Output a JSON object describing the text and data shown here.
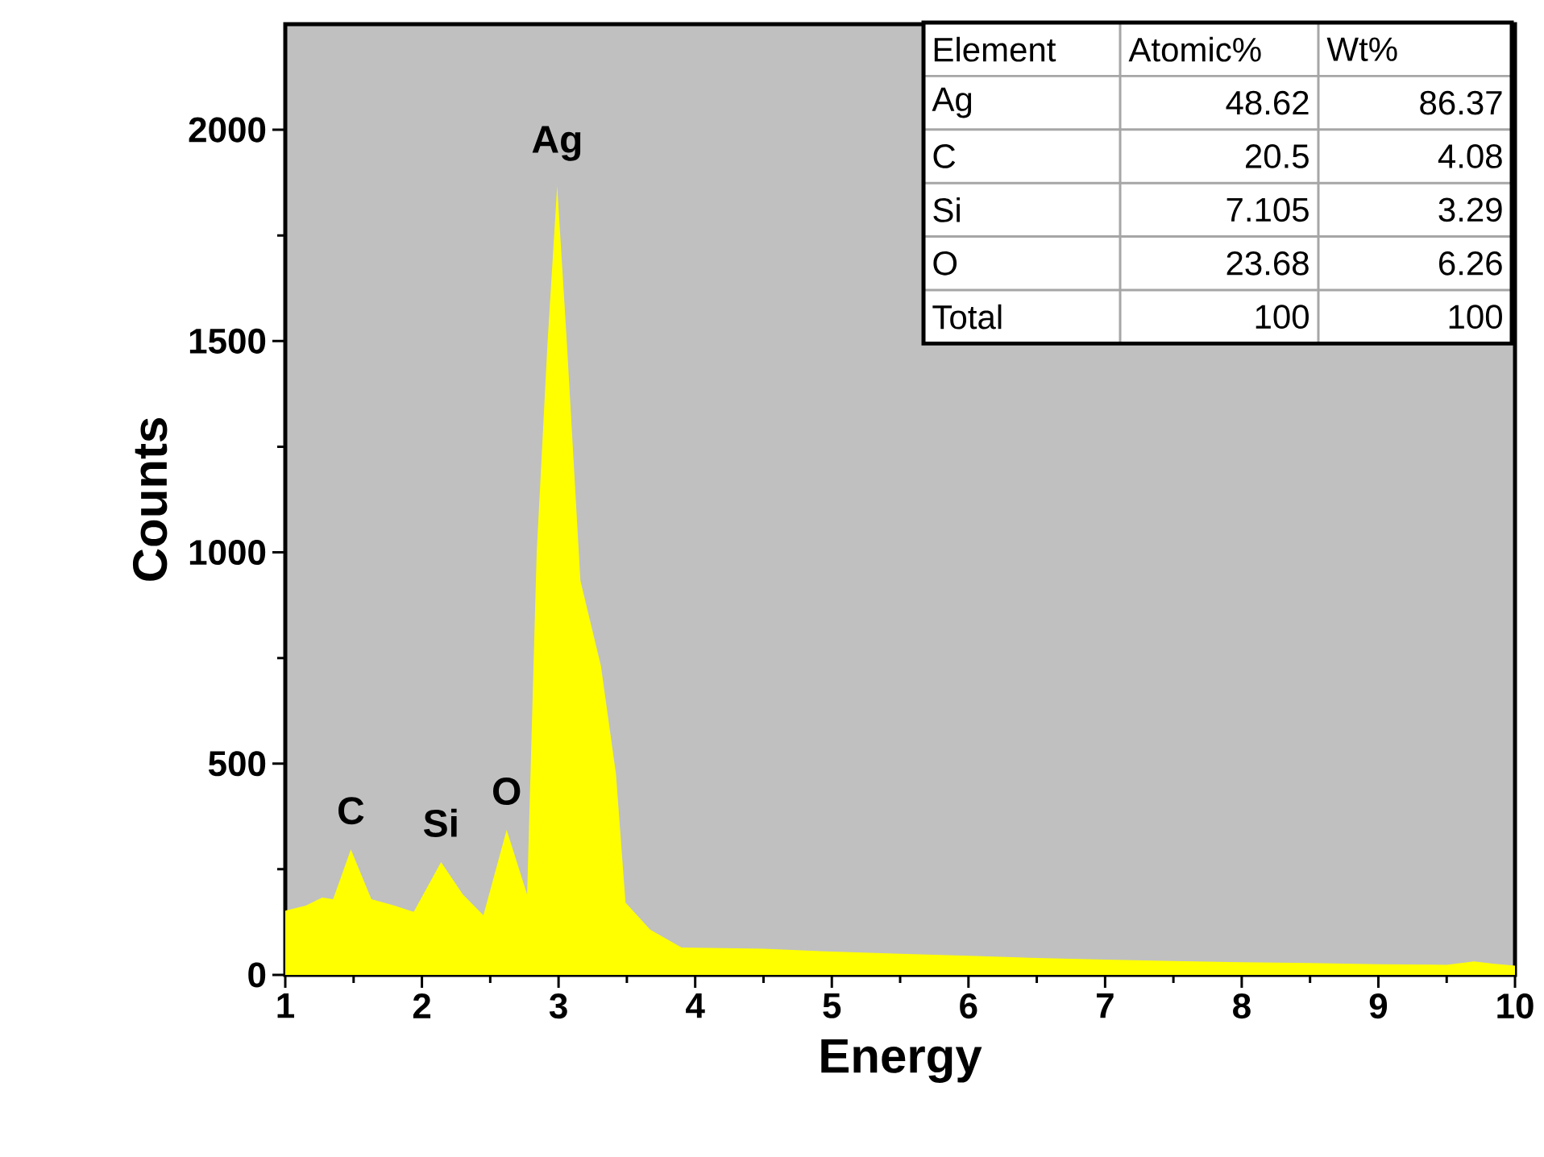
{
  "chart_data": {
    "type": "area",
    "xlabel": "Energy",
    "ylabel": "Counts",
    "color": "#ffff00",
    "x": [
      1.0,
      1.15,
      1.27,
      1.35,
      1.48,
      1.63,
      1.8,
      1.94,
      2.14,
      2.3,
      2.45,
      2.62,
      2.77,
      2.84,
      2.92,
      2.99,
      3.06,
      3.16,
      3.31,
      3.42,
      3.49,
      3.67,
      3.9,
      4.5,
      5.0,
      5.5,
      6.0,
      6.5,
      7.0,
      7.5,
      8.0,
      8.5,
      9.0,
      9.5,
      9.7,
      9.85,
      10.0
    ],
    "values": [
      152,
      164,
      183,
      179,
      297,
      179,
      164,
      149,
      267,
      190,
      141,
      343,
      190,
      1000,
      1500,
      1867,
      1500,
      933,
      731,
      476,
      171,
      107,
      65,
      62,
      55,
      50,
      45,
      40,
      36,
      33,
      30,
      28,
      25,
      24,
      32,
      26,
      22
    ],
    "xlim": [
      1,
      10
    ],
    "ylim": [
      0,
      2250
    ],
    "xticks": [
      1,
      2,
      3,
      4,
      5,
      6,
      7,
      8,
      9,
      10
    ],
    "yticks": [
      0,
      500,
      1000,
      1500,
      2000
    ],
    "annotations": [
      {
        "text": "C",
        "x": 1.48,
        "y": 297
      },
      {
        "text": "Si",
        "x": 2.14,
        "y": 267
      },
      {
        "text": "O",
        "x": 2.62,
        "y": 343
      },
      {
        "text": "Ag",
        "x": 2.99,
        "y": 1867
      },
      "Element",
      "Atomic%",
      "Wt%",
      "Ag",
      "48.62",
      "86.37",
      "C",
      "20.5",
      "4.08",
      "Si",
      "7.105",
      "3.29",
      "O",
      "23.68",
      "6.26",
      "Total",
      "100",
      "100"
    ]
  }
}
